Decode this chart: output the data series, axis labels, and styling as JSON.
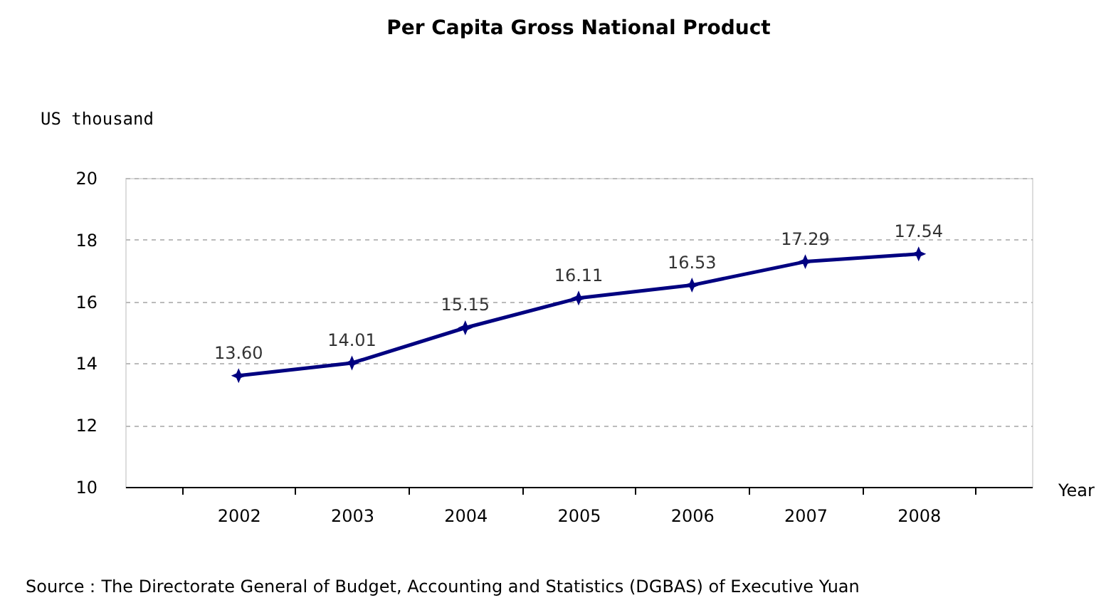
{
  "chart_data": {
    "type": "line",
    "title": "Per Capita Gross National Product",
    "ylabel": "US thousand",
    "xlabel": "Year",
    "categories": [
      "2002",
      "2003",
      "2004",
      "2005",
      "2006",
      "2007",
      "2008"
    ],
    "series": [
      {
        "color": "#000080",
        "values": [
          13.6,
          14.01,
          15.15,
          16.11,
          16.53,
          17.29,
          17.54
        ],
        "value_labels": [
          "13.60",
          "14.01",
          "15.15",
          "16.11",
          "16.53",
          "17.29",
          "17.54"
        ]
      }
    ],
    "ylim": [
      10,
      20
    ],
    "yticks": [
      10,
      12,
      14,
      16,
      18,
      20
    ],
    "grid": "y",
    "marker": "star",
    "line_style": "solid",
    "annotations": [
      "Source：The Directorate General of Budget, Accounting and Statistics (DGBAS) of Executive Yuan"
    ]
  }
}
